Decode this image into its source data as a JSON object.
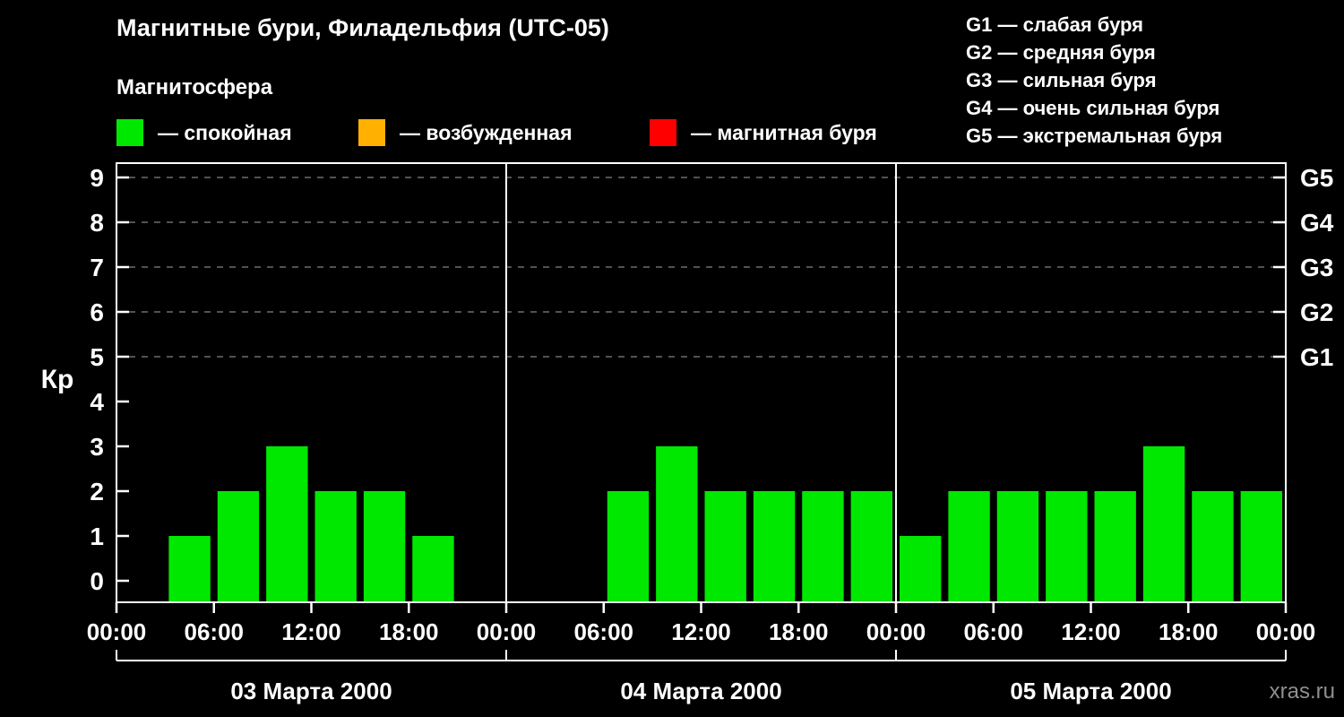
{
  "header": {
    "title": "Магнитные бури, Филадельфия (UTC-05)",
    "subtitle": "Магнитосфера",
    "legend": [
      {
        "key": "quiet",
        "label": "— спокойная",
        "color": "#00e800"
      },
      {
        "key": "excited",
        "label": "— возбужденная",
        "color": "#ffb000"
      },
      {
        "key": "storm",
        "label": "— магнитная буря",
        "color": "#ff0000"
      }
    ],
    "g_legend": [
      "G1 — слабая буря",
      "G2 — средняя буря",
      "G3 — сильная буря",
      "G4 — очень сильная буря",
      "G5 — экстремальная буря"
    ]
  },
  "chart_data": {
    "type": "bar",
    "ylabel": "Кр",
    "ylim": [
      0,
      9
    ],
    "yticks": [
      0,
      1,
      2,
      3,
      4,
      5,
      6,
      7,
      8,
      9
    ],
    "grid_levels": [
      5,
      6,
      7,
      8,
      9
    ],
    "right_axis": [
      {
        "level": 5,
        "label": "G1"
      },
      {
        "level": 6,
        "label": "G2"
      },
      {
        "level": 7,
        "label": "G3"
      },
      {
        "level": 8,
        "label": "G4"
      },
      {
        "level": 9,
        "label": "G5"
      }
    ],
    "x_tick_labels": [
      "00:00",
      "06:00",
      "12:00",
      "18:00",
      "00:00",
      "06:00",
      "12:00",
      "18:00",
      "00:00",
      "06:00",
      "12:00",
      "18:00",
      "00:00"
    ],
    "interval_hours": 3,
    "days": [
      {
        "date": "03 Марта 2000",
        "values": [
          0,
          1,
          2,
          3,
          2,
          2,
          1,
          0
        ]
      },
      {
        "date": "04 Марта 2000",
        "values": [
          0,
          0,
          2,
          3,
          2,
          2,
          2,
          2
        ]
      },
      {
        "date": "05 Марта 2000",
        "values": [
          1,
          2,
          2,
          2,
          2,
          3,
          2,
          2
        ]
      }
    ],
    "color_rules": {
      "quiet_max": 3,
      "excited_max": 4
    },
    "axis_color": "#ffffff",
    "grid_color": "#6e6e6e",
    "legend_position": "top"
  },
  "watermark": "xras.ru"
}
